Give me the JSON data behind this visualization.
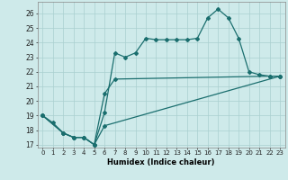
{
  "xlabel": "Humidex (Indice chaleur)",
  "background_color": "#ceeaea",
  "grid_color": "#aacfcf",
  "line_color": "#1a6e6e",
  "xlim": [
    -0.5,
    23.5
  ],
  "ylim": [
    16.8,
    26.8
  ],
  "yticks": [
    17,
    18,
    19,
    20,
    21,
    22,
    23,
    24,
    25,
    26
  ],
  "xticks": [
    0,
    1,
    2,
    3,
    4,
    5,
    6,
    7,
    8,
    9,
    10,
    11,
    12,
    13,
    14,
    15,
    16,
    17,
    18,
    19,
    20,
    21,
    22,
    23
  ],
  "line1_x": [
    0,
    1,
    2,
    3,
    4,
    5,
    6,
    7,
    8,
    9,
    10,
    11,
    12,
    13,
    14,
    15,
    16,
    17,
    18,
    19,
    20,
    21,
    22,
    23
  ],
  "line1_y": [
    19.0,
    18.5,
    17.8,
    17.5,
    17.5,
    17.0,
    19.2,
    23.3,
    23.0,
    23.3,
    24.3,
    24.2,
    24.2,
    24.2,
    24.2,
    24.3,
    25.7,
    26.3,
    25.7,
    24.3,
    22.0,
    21.8,
    21.7,
    21.7
  ],
  "line2_x": [
    0,
    2,
    3,
    4,
    5,
    6,
    7,
    22,
    23
  ],
  "line2_y": [
    19.0,
    17.8,
    17.5,
    17.5,
    17.0,
    20.5,
    21.5,
    21.7,
    21.7
  ],
  "line3_x": [
    0,
    2,
    3,
    4,
    5,
    6,
    23
  ],
  "line3_y": [
    19.0,
    17.8,
    17.5,
    17.5,
    17.0,
    18.3,
    21.7
  ]
}
